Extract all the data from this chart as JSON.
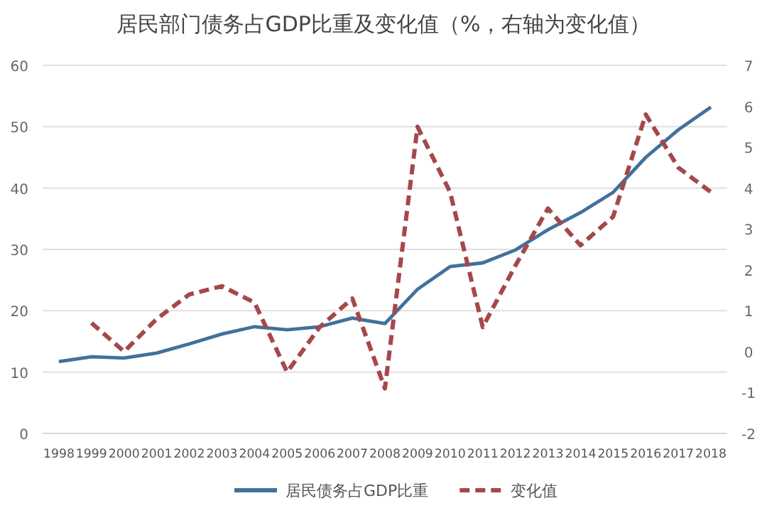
{
  "chart_data": {
    "type": "line",
    "title": "居民部门债务占GDP比重及变化值（%，右轴为变化值）",
    "categories": [
      "1998",
      "1999",
      "2000",
      "2001",
      "2002",
      "2003",
      "2004",
      "2005",
      "2006",
      "2007",
      "2008",
      "2009",
      "2010",
      "2011",
      "2012",
      "2013",
      "2014",
      "2015",
      "2016",
      "2017",
      "2018"
    ],
    "series": [
      {
        "name": "居民债务占GDP比重",
        "color": "#41719c",
        "line_style": "solid",
        "values": [
          11.7,
          12.5,
          12.3,
          13.1,
          14.6,
          16.2,
          17.4,
          16.9,
          17.4,
          18.8,
          17.9,
          23.5,
          27.2,
          27.8,
          29.9,
          33.2,
          36.0,
          39.3,
          45.0,
          49.5,
          53.2
        ]
      },
      {
        "name": "变化值",
        "color": "#a5484a",
        "line_style": "dashed",
        "axis": "y2",
        "values": [
          null,
          0.7,
          0.0,
          0.8,
          1.4,
          1.6,
          1.2,
          -0.5,
          0.6,
          1.3,
          -0.9,
          5.5,
          3.9,
          0.6,
          2.1,
          3.5,
          2.6,
          3.3,
          5.8,
          4.5,
          3.9
        ]
      }
    ],
    "ylim": [
      0,
      60
    ],
    "yticks": [
      0,
      10,
      20,
      30,
      40,
      50,
      60
    ],
    "y2lim": [
      -2,
      7
    ],
    "y2ticks": [
      -2,
      -1,
      0,
      1,
      2,
      3,
      4,
      5,
      6,
      7
    ],
    "grid": "y",
    "legend": "bottom"
  }
}
